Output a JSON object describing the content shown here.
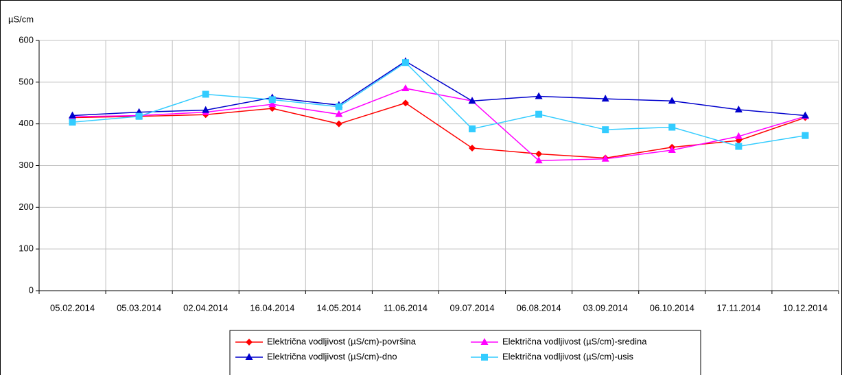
{
  "chart_data": {
    "type": "line",
    "y_label": "µS/cm",
    "categories": [
      "05.02.2014",
      "05.03.2014",
      "02.04.2014",
      "16.04.2014",
      "14.05.2014",
      "11.06.2014",
      "09.07.2014",
      "06.08.2014",
      "03.09.2014",
      "06.10.2014",
      "17.11.2014",
      "10.12.2014"
    ],
    "series": [
      {
        "name": "Električna vodljivost (µS/cm)-površina",
        "color": "#ff0000",
        "marker": "diamond",
        "values": [
          415,
          418,
          422,
          437,
          400,
          450,
          342,
          328,
          318,
          344,
          360,
          415
        ]
      },
      {
        "name": "Električna vodljivost (µS/cm)-sredina",
        "color": "#ff00ff",
        "marker": "triangle",
        "values": [
          417,
          420,
          428,
          447,
          423,
          485,
          455,
          312,
          316,
          337,
          370,
          418
        ]
      },
      {
        "name": "Električna vodljivost (µS/cm)-dno",
        "color": "#0000cc",
        "marker": "triangle",
        "values": [
          420,
          428,
          433,
          463,
          445,
          550,
          455,
          466,
          460,
          455,
          434,
          420
        ]
      },
      {
        "name": "Električna vodljivost (µS/cm)-usis",
        "color": "#33ccff",
        "marker": "square",
        "values": [
          404,
          418,
          471,
          458,
          441,
          547,
          388,
          423,
          386,
          392,
          346,
          372
        ]
      }
    ],
    "ylim": [
      0,
      600
    ],
    "yticks": [
      0,
      100,
      200,
      300,
      400,
      500,
      600
    ],
    "grid": true,
    "legend": "bottom"
  }
}
